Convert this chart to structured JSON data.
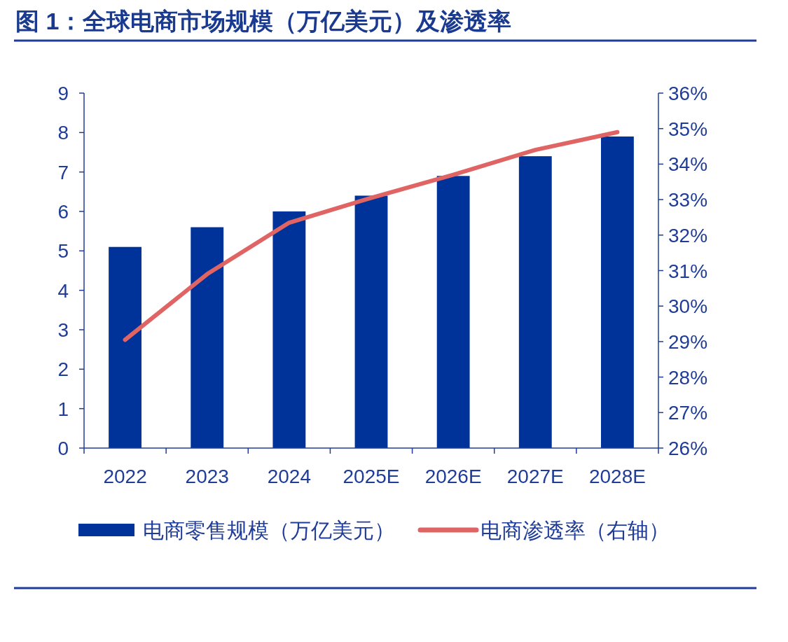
{
  "chart_data": {
    "type": "bar",
    "title": "图 1：全球电商市场规模（万亿美元）及渗透率",
    "categories": [
      "2022",
      "2023",
      "2024",
      "2025E",
      "2026E",
      "2027E",
      "2028E"
    ],
    "series": [
      {
        "name": "电商零售规模（万亿美元）",
        "color": "#003399",
        "values": [
          5.1,
          5.6,
          6.0,
          6.4,
          6.9,
          7.4,
          7.9
        ]
      },
      {
        "name": "电商渗透率（右轴）",
        "type": "line",
        "axis": "y2",
        "color": "#e06464",
        "values": [
          29.05,
          30.9,
          32.35,
          33.05,
          33.7,
          34.4,
          34.9
        ]
      }
    ],
    "ylim": [
      0,
      9
    ],
    "yticks": [
      0,
      1,
      2,
      3,
      4,
      5,
      6,
      7,
      8,
      9
    ],
    "y2lim": [
      26,
      36
    ],
    "y2ticks": [
      {
        "value": 26,
        "label": "26%"
      },
      {
        "value": 27,
        "label": "27%"
      },
      {
        "value": 28,
        "label": "28%"
      },
      {
        "value": 29,
        "label": "29%"
      },
      {
        "value": 30,
        "label": "30%"
      },
      {
        "value": 31,
        "label": "31%"
      },
      {
        "value": 32,
        "label": "32%"
      },
      {
        "value": 33,
        "label": "33%"
      },
      {
        "value": 34,
        "label": "34%"
      },
      {
        "value": 35,
        "label": "35%"
      },
      {
        "value": 36,
        "label": "36%"
      }
    ],
    "legend": "bottom",
    "grid": false,
    "marker": "none",
    "line_style": "solid"
  }
}
